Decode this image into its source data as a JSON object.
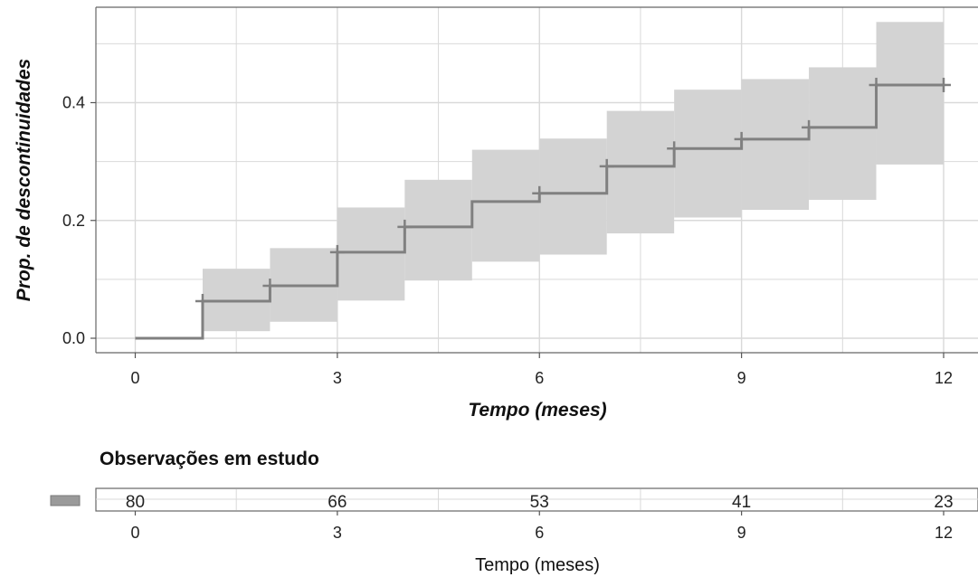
{
  "chart_data": {
    "type": "line",
    "subtype": "kaplan-meier-cumulative-incidence-step",
    "ylabel": "Prop. de descontinuidades",
    "xlabel": "Tempo (meses)",
    "xlim": [
      0,
      12
    ],
    "ylim": [
      0,
      0.53
    ],
    "x_ticks": [
      "0",
      "3",
      "6",
      "9",
      "12"
    ],
    "y_ticks": [
      "0.0",
      "0.2",
      "0.4"
    ],
    "grid": true,
    "colors": {
      "line": "#808080",
      "band": "#d3d3d3",
      "grid": "#d9d9d9",
      "frame": "#555555"
    },
    "series": [
      {
        "steps": [
          {
            "x": 0,
            "y": 0.0,
            "lower": 0.0,
            "upper": 0.0
          },
          {
            "x": 1,
            "y": 0.063,
            "lower": 0.012,
            "upper": 0.118
          },
          {
            "x": 2,
            "y": 0.089,
            "lower": 0.028,
            "upper": 0.153
          },
          {
            "x": 3,
            "y": 0.146,
            "lower": 0.064,
            "upper": 0.222
          },
          {
            "x": 4,
            "y": 0.189,
            "lower": 0.098,
            "upper": 0.269
          },
          {
            "x": 5,
            "y": 0.232,
            "lower": 0.13,
            "upper": 0.32
          },
          {
            "x": 6,
            "y": 0.246,
            "lower": 0.142,
            "upper": 0.339
          },
          {
            "x": 7,
            "y": 0.292,
            "lower": 0.178,
            "upper": 0.386
          },
          {
            "x": 8,
            "y": 0.322,
            "lower": 0.205,
            "upper": 0.422
          },
          {
            "x": 9,
            "y": 0.338,
            "lower": 0.218,
            "upper": 0.44
          },
          {
            "x": 10,
            "y": 0.358,
            "lower": 0.235,
            "upper": 0.46
          },
          {
            "x": 11,
            "y": 0.43,
            "lower": 0.295,
            "upper": 0.537
          },
          {
            "x": 12,
            "y": 0.43,
            "lower": 0.295,
            "upper": 0.537
          }
        ],
        "censor_marks": [
          {
            "x": 1.0,
            "y": 0.063
          },
          {
            "x": 2.0,
            "y": 0.089
          },
          {
            "x": 3.0,
            "y": 0.146
          },
          {
            "x": 4.0,
            "y": 0.189
          },
          {
            "x": 6.0,
            "y": 0.246
          },
          {
            "x": 7.0,
            "y": 0.292
          },
          {
            "x": 8.0,
            "y": 0.322
          },
          {
            "x": 9.0,
            "y": 0.338
          },
          {
            "x": 10.0,
            "y": 0.358
          },
          {
            "x": 11.0,
            "y": 0.43
          },
          {
            "x": 12.0,
            "y": 0.43
          }
        ]
      }
    ],
    "risk_table": {
      "title": "Observações em estudo",
      "xlabel": "Tempo (meses)",
      "times": [
        0,
        3,
        6,
        9,
        12
      ],
      "time_labels": [
        "0",
        "3",
        "6",
        "9",
        "12"
      ],
      "values": [
        "80",
        "66",
        "53",
        "41",
        "23"
      ]
    }
  }
}
